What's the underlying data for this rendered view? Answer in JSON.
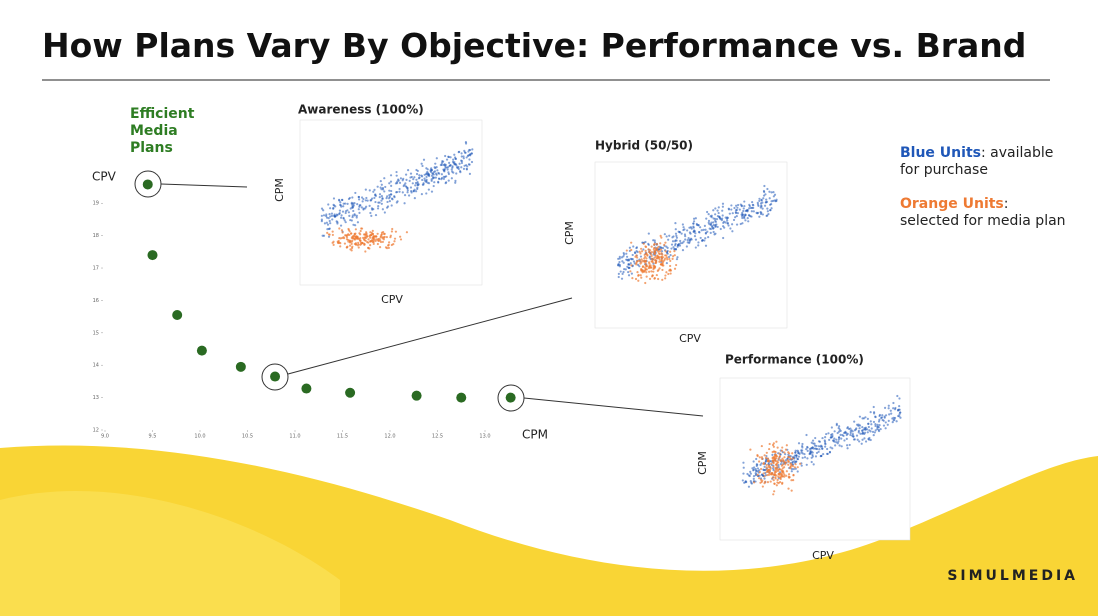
{
  "title": "How Plans Vary By Objective: Performance vs. Brand",
  "chart_data": {
    "type": "scatter",
    "annotation": "Efficient Media Plans",
    "annotation_color": "#2e7d23",
    "x_label": "CPM",
    "y_label": "CPV",
    "x": [
      9.45,
      9.5,
      9.76,
      10.02,
      10.43,
      10.79,
      11.12,
      11.58,
      12.28,
      12.75,
      13.27
    ],
    "y": [
      19.58,
      17.4,
      15.55,
      14.45,
      13.95,
      13.65,
      13.28,
      13.15,
      13.06,
      13.0,
      13.0
    ],
    "color": "#2a6a22",
    "xlim": [
      9.0,
      13.3
    ],
    "ylim": [
      12,
      19.6
    ],
    "xticks": [
      {
        "value": 9,
        "label": "9.0"
      },
      9.5,
      {
        "value": 10,
        "label": "10.0"
      },
      10.5,
      {
        "value": 11,
        "label": "11.0"
      },
      11.5,
      {
        "value": 12,
        "label": "12.0"
      },
      12.5,
      {
        "value": 13,
        "label": "13.0"
      }
    ],
    "yticks": [
      12,
      13,
      14,
      15,
      16,
      17,
      18,
      19
    ]
  },
  "insets": [
    {
      "title": "Awareness (100%)",
      "x_label": "CPV",
      "y_label": "CPM"
    },
    {
      "title": "Hybrid (50/50)",
      "x_label": "CPV",
      "y_label": "CPM"
    },
    {
      "title": "Performance (100%)",
      "x_label": "CPV",
      "y_label": "CPM"
    }
  ],
  "legend": [
    {
      "key": "Blue Units",
      "text": ": available for purchase",
      "color": "#1f57b8"
    },
    {
      "key": "Orange Units",
      "text": ": selected for media plan",
      "color": "#ee7a33"
    }
  ],
  "logo": "SIMULMEDIA"
}
